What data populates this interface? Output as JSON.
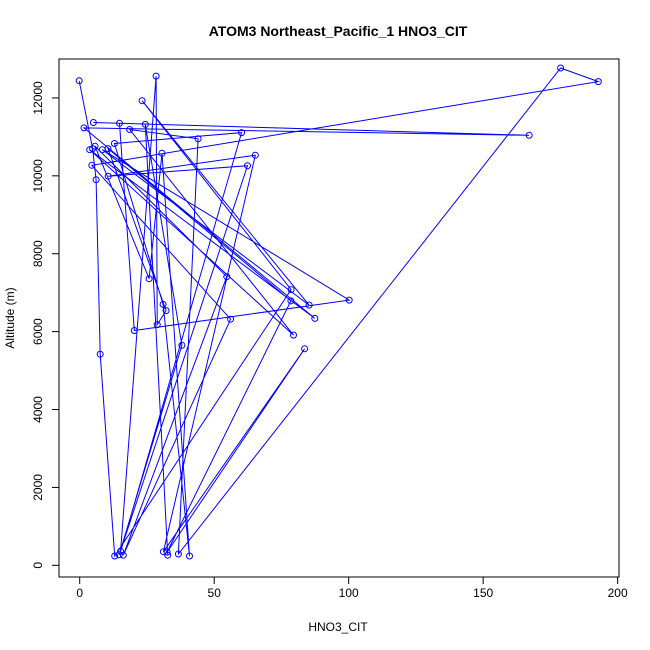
{
  "chart_data": {
    "type": "line",
    "title": "ATOM3 Northeast_Pacific_1 HNO3_CIT",
    "xlabel": "HNO3_CIT",
    "ylabel": "Altitude (m)",
    "xlim": [
      -7.7,
      200.5
    ],
    "ylim": [
      -300,
      13000
    ],
    "xticks": [
      0,
      50,
      100,
      150,
      200
    ],
    "yticks": [
      0,
      2000,
      4000,
      6000,
      8000,
      10000,
      12000
    ],
    "grid": false,
    "line_color": "#0000ff",
    "marker": "open-circle",
    "series": [
      {
        "points": [
          [
            -0.2,
            12440
          ],
          [
            4.8,
            10700
          ],
          [
            6.1,
            9900
          ],
          [
            7.6,
            5420
          ],
          [
            13.0,
            240
          ],
          [
            78.6,
            7080
          ],
          [
            23.2,
            11930
          ],
          [
            85.3,
            6680
          ],
          [
            8.4,
            10670
          ],
          [
            100.2,
            6810
          ],
          [
            20.3,
            6030
          ],
          [
            14.8,
            11350
          ],
          [
            5.1,
            11370
          ],
          [
            167.1,
            11040
          ],
          [
            1.6,
            11230
          ],
          [
            87.4,
            6340
          ],
          [
            3.7,
            10670
          ],
          [
            79.5,
            5910
          ],
          [
            18.6,
            11190
          ],
          [
            44.0,
            10950
          ],
          [
            36.7,
            290
          ],
          [
            178.8,
            12770
          ],
          [
            192.8,
            12420
          ],
          [
            4.5,
            10270
          ],
          [
            56.1,
            6320
          ],
          [
            16.2,
            260
          ],
          [
            54.7,
            7410
          ],
          [
            5.7,
            10760
          ],
          [
            25.8,
            7360
          ],
          [
            30.6,
            10580
          ],
          [
            40.8,
            240
          ],
          [
            31.0,
            6700
          ],
          [
            12.9,
            10830
          ],
          [
            60.2,
            11110
          ],
          [
            15.2,
            360
          ],
          [
            28.4,
            12560
          ],
          [
            28.8,
            6180
          ],
          [
            32.1,
            6540
          ],
          [
            10.5,
            10700
          ],
          [
            78.5,
            6790
          ],
          [
            32.5,
            340
          ],
          [
            83.6,
            5560
          ],
          [
            31.1,
            350
          ],
          [
            65.3,
            10530
          ],
          [
            10.6,
            9990
          ],
          [
            62.4,
            10260
          ],
          [
            14.7,
            270
          ],
          [
            38.0,
            5650
          ],
          [
            24.4,
            11320
          ],
          [
            32.7,
            260
          ]
        ]
      }
    ]
  }
}
